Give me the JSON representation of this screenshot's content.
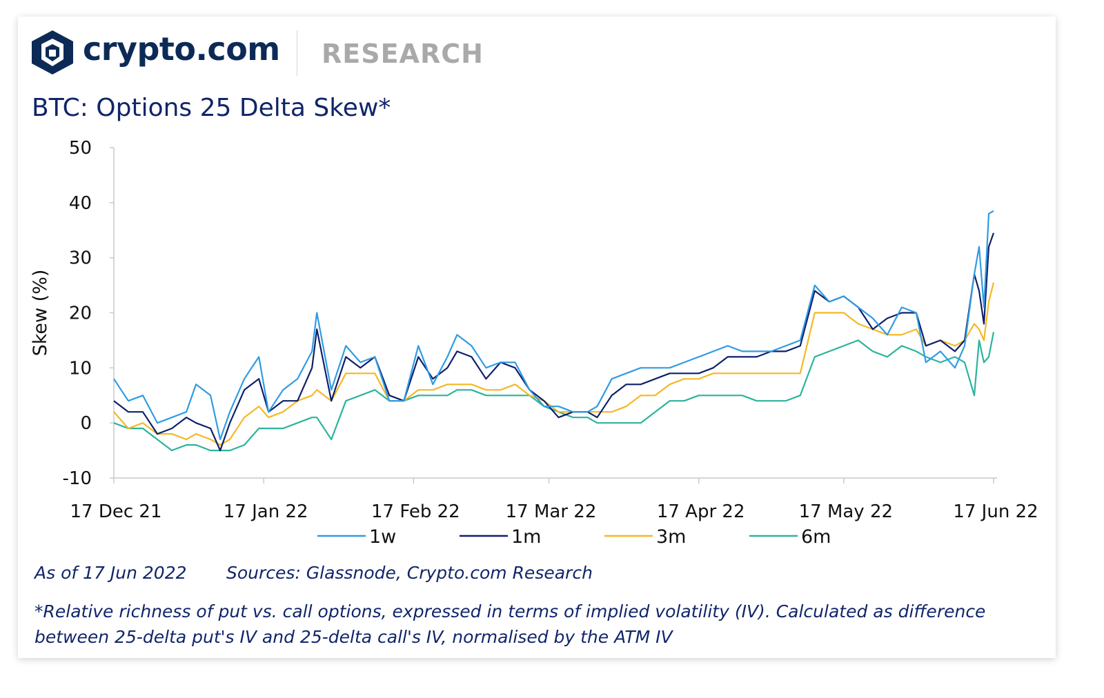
{
  "header": {
    "brand": "crypto.com",
    "section": "RESEARCH",
    "title": "BTC: Options 25 Delta Skew*"
  },
  "footer": {
    "as_of": "As of 17 Jun 2022",
    "sources": "Sources: Glassnode, Crypto.com Research",
    "note": "*Relative richness of put vs. call options, expressed in terms of implied volatility (IV). Calculated as difference between 25-delta put's IV and 25-delta call's IV, normalised by the ATM IV"
  },
  "colors": {
    "brand_navy": "#0d2a57",
    "title_blue": "#10256a",
    "research_gray": "#a9a9a9"
  },
  "chart_data": {
    "type": "line",
    "title": "BTC: Options 25 Delta Skew*",
    "xlabel": "",
    "ylabel": "Skew (%)",
    "ylim": [
      -10,
      50
    ],
    "yticks": [
      -10,
      0,
      10,
      20,
      30,
      40,
      50
    ],
    "xlim": [
      "2021-12-17",
      "2022-06-17"
    ],
    "xticks": [
      {
        "date": "2021-12-17",
        "label": "17 Dec 21"
      },
      {
        "date": "2022-01-17",
        "label": "17 Jan 22"
      },
      {
        "date": "2022-02-17",
        "label": "17 Feb 22"
      },
      {
        "date": "2022-03-17",
        "label": "17 Mar 22"
      },
      {
        "date": "2022-04-17",
        "label": "17 Apr 22"
      },
      {
        "date": "2022-05-17",
        "label": "17 May 22"
      },
      {
        "date": "2022-06-17",
        "label": "17 Jun 22"
      }
    ],
    "grid": false,
    "legend_position": "bottom",
    "series": [
      {
        "name": "1w",
        "color": "#2f9be4",
        "points": [
          [
            "2021-12-17",
            8
          ],
          [
            "2021-12-20",
            4
          ],
          [
            "2021-12-23",
            5
          ],
          [
            "2021-12-26",
            0
          ],
          [
            "2021-12-29",
            1
          ],
          [
            "2022-01-01",
            2
          ],
          [
            "2022-01-03",
            7
          ],
          [
            "2022-01-06",
            5
          ],
          [
            "2022-01-08",
            -3
          ],
          [
            "2022-01-10",
            2
          ],
          [
            "2022-01-13",
            8
          ],
          [
            "2022-01-16",
            12
          ],
          [
            "2022-01-18",
            2
          ],
          [
            "2022-01-21",
            6
          ],
          [
            "2022-01-24",
            8
          ],
          [
            "2022-01-27",
            13
          ],
          [
            "2022-01-28",
            20
          ],
          [
            "2022-01-31",
            6
          ],
          [
            "2022-02-03",
            14
          ],
          [
            "2022-02-06",
            11
          ],
          [
            "2022-02-09",
            12
          ],
          [
            "2022-02-12",
            4
          ],
          [
            "2022-02-15",
            4
          ],
          [
            "2022-02-18",
            14
          ],
          [
            "2022-02-21",
            7
          ],
          [
            "2022-02-24",
            12
          ],
          [
            "2022-02-26",
            16
          ],
          [
            "2022-03-01",
            14
          ],
          [
            "2022-03-04",
            10
          ],
          [
            "2022-03-07",
            11
          ],
          [
            "2022-03-10",
            11
          ],
          [
            "2022-03-13",
            6
          ],
          [
            "2022-03-16",
            3
          ],
          [
            "2022-03-19",
            3
          ],
          [
            "2022-03-22",
            2
          ],
          [
            "2022-03-25",
            2
          ],
          [
            "2022-03-27",
            3
          ],
          [
            "2022-03-30",
            8
          ],
          [
            "2022-04-02",
            9
          ],
          [
            "2022-04-05",
            10
          ],
          [
            "2022-04-08",
            10
          ],
          [
            "2022-04-11",
            10
          ],
          [
            "2022-04-14",
            11
          ],
          [
            "2022-04-17",
            12
          ],
          [
            "2022-04-20",
            13
          ],
          [
            "2022-04-23",
            14
          ],
          [
            "2022-04-26",
            13
          ],
          [
            "2022-04-29",
            13
          ],
          [
            "2022-05-02",
            13
          ],
          [
            "2022-05-05",
            14
          ],
          [
            "2022-05-08",
            15
          ],
          [
            "2022-05-11",
            25
          ],
          [
            "2022-05-14",
            22
          ],
          [
            "2022-05-17",
            23
          ],
          [
            "2022-05-20",
            21
          ],
          [
            "2022-05-23",
            19
          ],
          [
            "2022-05-26",
            16
          ],
          [
            "2022-05-29",
            21
          ],
          [
            "2022-06-01",
            20
          ],
          [
            "2022-06-03",
            11
          ],
          [
            "2022-06-06",
            13
          ],
          [
            "2022-06-09",
            10
          ],
          [
            "2022-06-11",
            14
          ],
          [
            "2022-06-13",
            27
          ],
          [
            "2022-06-14",
            32
          ],
          [
            "2022-06-15",
            21
          ],
          [
            "2022-06-16",
            38
          ],
          [
            "2022-06-17",
            38.5
          ]
        ]
      },
      {
        "name": "1m",
        "color": "#0d1f6b",
        "points": [
          [
            "2021-12-17",
            4
          ],
          [
            "2021-12-20",
            2
          ],
          [
            "2021-12-23",
            2
          ],
          [
            "2021-12-26",
            -2
          ],
          [
            "2021-12-29",
            -1
          ],
          [
            "2022-01-01",
            1
          ],
          [
            "2022-01-03",
            0
          ],
          [
            "2022-01-06",
            -1
          ],
          [
            "2022-01-08",
            -5
          ],
          [
            "2022-01-10",
            0
          ],
          [
            "2022-01-13",
            6
          ],
          [
            "2022-01-16",
            8
          ],
          [
            "2022-01-18",
            2
          ],
          [
            "2022-01-21",
            4
          ],
          [
            "2022-01-24",
            4
          ],
          [
            "2022-01-27",
            10
          ],
          [
            "2022-01-28",
            17
          ],
          [
            "2022-01-31",
            4
          ],
          [
            "2022-02-03",
            12
          ],
          [
            "2022-02-06",
            10
          ],
          [
            "2022-02-09",
            12
          ],
          [
            "2022-02-12",
            5
          ],
          [
            "2022-02-15",
            4
          ],
          [
            "2022-02-18",
            12
          ],
          [
            "2022-02-21",
            8
          ],
          [
            "2022-02-24",
            10
          ],
          [
            "2022-02-26",
            13
          ],
          [
            "2022-03-01",
            12
          ],
          [
            "2022-03-04",
            8
          ],
          [
            "2022-03-07",
            11
          ],
          [
            "2022-03-10",
            10
          ],
          [
            "2022-03-13",
            6
          ],
          [
            "2022-03-16",
            4
          ],
          [
            "2022-03-19",
            1
          ],
          [
            "2022-03-22",
            2
          ],
          [
            "2022-03-25",
            2
          ],
          [
            "2022-03-27",
            1
          ],
          [
            "2022-03-30",
            5
          ],
          [
            "2022-04-02",
            7
          ],
          [
            "2022-04-05",
            7
          ],
          [
            "2022-04-08",
            8
          ],
          [
            "2022-04-11",
            9
          ],
          [
            "2022-04-14",
            9
          ],
          [
            "2022-04-17",
            9
          ],
          [
            "2022-04-20",
            10
          ],
          [
            "2022-04-23",
            12
          ],
          [
            "2022-04-26",
            12
          ],
          [
            "2022-04-29",
            12
          ],
          [
            "2022-05-02",
            13
          ],
          [
            "2022-05-05",
            13
          ],
          [
            "2022-05-08",
            14
          ],
          [
            "2022-05-11",
            24
          ],
          [
            "2022-05-14",
            22
          ],
          [
            "2022-05-17",
            23
          ],
          [
            "2022-05-20",
            21
          ],
          [
            "2022-05-23",
            17
          ],
          [
            "2022-05-26",
            19
          ],
          [
            "2022-05-29",
            20
          ],
          [
            "2022-06-01",
            20
          ],
          [
            "2022-06-03",
            14
          ],
          [
            "2022-06-06",
            15
          ],
          [
            "2022-06-09",
            13
          ],
          [
            "2022-06-11",
            15
          ],
          [
            "2022-06-13",
            27
          ],
          [
            "2022-06-14",
            24
          ],
          [
            "2022-06-15",
            18
          ],
          [
            "2022-06-16",
            32
          ],
          [
            "2022-06-17",
            34.5
          ]
        ]
      },
      {
        "name": "3m",
        "color": "#f4b824",
        "points": [
          [
            "2021-12-17",
            2
          ],
          [
            "2021-12-20",
            -1
          ],
          [
            "2021-12-23",
            0
          ],
          [
            "2021-12-26",
            -2
          ],
          [
            "2021-12-29",
            -2
          ],
          [
            "2022-01-01",
            -3
          ],
          [
            "2022-01-03",
            -2
          ],
          [
            "2022-01-06",
            -3
          ],
          [
            "2022-01-08",
            -4
          ],
          [
            "2022-01-10",
            -3
          ],
          [
            "2022-01-13",
            1
          ],
          [
            "2022-01-16",
            3
          ],
          [
            "2022-01-18",
            1
          ],
          [
            "2022-01-21",
            2
          ],
          [
            "2022-01-24",
            4
          ],
          [
            "2022-01-27",
            5
          ],
          [
            "2022-01-28",
            6
          ],
          [
            "2022-01-31",
            4
          ],
          [
            "2022-02-03",
            9
          ],
          [
            "2022-02-06",
            9
          ],
          [
            "2022-02-09",
            9
          ],
          [
            "2022-02-12",
            4
          ],
          [
            "2022-02-15",
            4
          ],
          [
            "2022-02-18",
            6
          ],
          [
            "2022-02-21",
            6
          ],
          [
            "2022-02-24",
            7
          ],
          [
            "2022-02-26",
            7
          ],
          [
            "2022-03-01",
            7
          ],
          [
            "2022-03-04",
            6
          ],
          [
            "2022-03-07",
            6
          ],
          [
            "2022-03-10",
            7
          ],
          [
            "2022-03-13",
            5
          ],
          [
            "2022-03-16",
            4
          ],
          [
            "2022-03-19",
            2
          ],
          [
            "2022-03-22",
            2
          ],
          [
            "2022-03-25",
            2
          ],
          [
            "2022-03-27",
            2
          ],
          [
            "2022-03-30",
            2
          ],
          [
            "2022-04-02",
            3
          ],
          [
            "2022-04-05",
            5
          ],
          [
            "2022-04-08",
            5
          ],
          [
            "2022-04-11",
            7
          ],
          [
            "2022-04-14",
            8
          ],
          [
            "2022-04-17",
            8
          ],
          [
            "2022-04-20",
            9
          ],
          [
            "2022-04-23",
            9
          ],
          [
            "2022-04-26",
            9
          ],
          [
            "2022-04-29",
            9
          ],
          [
            "2022-05-02",
            9
          ],
          [
            "2022-05-05",
            9
          ],
          [
            "2022-05-08",
            9
          ],
          [
            "2022-05-11",
            20
          ],
          [
            "2022-05-14",
            20
          ],
          [
            "2022-05-17",
            20
          ],
          [
            "2022-05-20",
            18
          ],
          [
            "2022-05-23",
            17
          ],
          [
            "2022-05-26",
            16
          ],
          [
            "2022-05-29",
            16
          ],
          [
            "2022-06-01",
            17
          ],
          [
            "2022-06-03",
            14
          ],
          [
            "2022-06-06",
            15
          ],
          [
            "2022-06-09",
            14
          ],
          [
            "2022-06-11",
            15
          ],
          [
            "2022-06-13",
            18
          ],
          [
            "2022-06-14",
            17
          ],
          [
            "2022-06-15",
            15
          ],
          [
            "2022-06-16",
            22
          ],
          [
            "2022-06-17",
            25.5
          ]
        ]
      },
      {
        "name": "6m",
        "color": "#2ab39c",
        "points": [
          [
            "2021-12-17",
            0
          ],
          [
            "2021-12-20",
            -1
          ],
          [
            "2021-12-23",
            -1
          ],
          [
            "2021-12-26",
            -3
          ],
          [
            "2021-12-29",
            -5
          ],
          [
            "2022-01-01",
            -4
          ],
          [
            "2022-01-03",
            -4
          ],
          [
            "2022-01-06",
            -5
          ],
          [
            "2022-01-08",
            -5
          ],
          [
            "2022-01-10",
            -5
          ],
          [
            "2022-01-13",
            -4
          ],
          [
            "2022-01-16",
            -1
          ],
          [
            "2022-01-18",
            -1
          ],
          [
            "2022-01-21",
            -1
          ],
          [
            "2022-01-24",
            0
          ],
          [
            "2022-01-27",
            1
          ],
          [
            "2022-01-28",
            1
          ],
          [
            "2022-01-31",
            -3
          ],
          [
            "2022-02-03",
            4
          ],
          [
            "2022-02-06",
            5
          ],
          [
            "2022-02-09",
            6
          ],
          [
            "2022-02-12",
            4
          ],
          [
            "2022-02-15",
            4
          ],
          [
            "2022-02-18",
            5
          ],
          [
            "2022-02-21",
            5
          ],
          [
            "2022-02-24",
            5
          ],
          [
            "2022-02-26",
            6
          ],
          [
            "2022-03-01",
            6
          ],
          [
            "2022-03-04",
            5
          ],
          [
            "2022-03-07",
            5
          ],
          [
            "2022-03-10",
            5
          ],
          [
            "2022-03-13",
            5
          ],
          [
            "2022-03-16",
            3
          ],
          [
            "2022-03-19",
            2
          ],
          [
            "2022-03-22",
            1
          ],
          [
            "2022-03-25",
            1
          ],
          [
            "2022-03-27",
            0
          ],
          [
            "2022-03-30",
            0
          ],
          [
            "2022-04-02",
            0
          ],
          [
            "2022-04-05",
            0
          ],
          [
            "2022-04-08",
            2
          ],
          [
            "2022-04-11",
            4
          ],
          [
            "2022-04-14",
            4
          ],
          [
            "2022-04-17",
            5
          ],
          [
            "2022-04-20",
            5
          ],
          [
            "2022-04-23",
            5
          ],
          [
            "2022-04-26",
            5
          ],
          [
            "2022-04-29",
            4
          ],
          [
            "2022-05-02",
            4
          ],
          [
            "2022-05-05",
            4
          ],
          [
            "2022-05-08",
            5
          ],
          [
            "2022-05-11",
            12
          ],
          [
            "2022-05-14",
            13
          ],
          [
            "2022-05-17",
            14
          ],
          [
            "2022-05-20",
            15
          ],
          [
            "2022-05-23",
            13
          ],
          [
            "2022-05-26",
            12
          ],
          [
            "2022-05-29",
            14
          ],
          [
            "2022-06-01",
            13
          ],
          [
            "2022-06-03",
            12
          ],
          [
            "2022-06-06",
            11
          ],
          [
            "2022-06-09",
            12
          ],
          [
            "2022-06-11",
            11
          ],
          [
            "2022-06-13",
            5
          ],
          [
            "2022-06-14",
            15
          ],
          [
            "2022-06-15",
            11
          ],
          [
            "2022-06-16",
            12
          ],
          [
            "2022-06-17",
            16.5
          ]
        ]
      }
    ]
  }
}
